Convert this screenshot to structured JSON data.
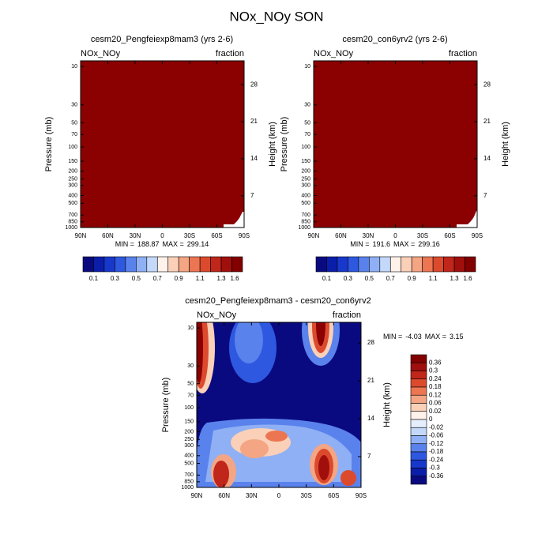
{
  "title": "NOx_NOy SON",
  "chart_data": [
    {
      "type": "contour",
      "title": "cesm20_Pengfeiexp8mam3 (yrs 2-6)",
      "left_label": "NOx_NOy",
      "right_label": "fraction",
      "ylabel": "Pressure (mb)",
      "y2label": "Height (km)",
      "log_y": true,
      "xlim": [
        90,
        -90
      ],
      "xticks": [
        {
          "value": 90,
          "label": "90N"
        },
        {
          "value": 60,
          "label": "60N"
        },
        {
          "value": 30,
          "label": "30N"
        },
        0,
        {
          "value": -30,
          "label": "30S"
        },
        {
          "value": -60,
          "label": "60S"
        },
        {
          "value": -90,
          "label": "90S"
        }
      ],
      "ylim": [
        1000,
        8.5
      ],
      "yticks": [
        1000,
        850,
        700,
        500,
        400,
        300,
        250,
        200,
        150,
        100,
        70,
        50,
        30,
        10
      ],
      "y2lim": [
        1,
        32.5
      ],
      "y2ticks": [
        7,
        14,
        21,
        28
      ],
      "min_label": "MIN =",
      "min": 188.87,
      "max_label": "MAX =",
      "max": 299.14,
      "colorbar": {
        "orientation": "horizontal",
        "labels": [
          0.1,
          0.3,
          0.5,
          0.7,
          0.9,
          1.1,
          1.3,
          1.6
        ],
        "colors": [
          "#0a0a80",
          "#0b1eaa",
          "#1838cc",
          "#2e58e0",
          "#5a82ec",
          "#8fb0f4",
          "#c4d8fa",
          "#fff2ea",
          "#fad0b8",
          "#f4a584",
          "#ec7652",
          "#dc4a2e",
          "#c0261a",
          "#a10f0c",
          "#820000"
        ]
      }
    },
    {
      "type": "contour",
      "title": "cesm20_con6yrv2 (yrs 2-6)",
      "left_label": "NOx_NOy",
      "right_label": "fraction",
      "ylabel": "Pressure (mb)",
      "y2label": "Height (km)",
      "log_y": true,
      "xlim": [
        90,
        -90
      ],
      "xticks": [
        {
          "value": 90,
          "label": "90N"
        },
        {
          "value": 60,
          "label": "60N"
        },
        {
          "value": 30,
          "label": "30N"
        },
        0,
        {
          "value": -30,
          "label": "30S"
        },
        {
          "value": -60,
          "label": "60S"
        },
        {
          "value": -90,
          "label": "90S"
        }
      ],
      "ylim": [
        1000,
        8.5
      ],
      "yticks": [
        1000,
        850,
        700,
        500,
        400,
        300,
        250,
        200,
        150,
        100,
        70,
        50,
        30,
        10
      ],
      "y2lim": [
        1,
        32.5
      ],
      "y2ticks": [
        7,
        14,
        21,
        28
      ],
      "min_label": "MIN =",
      "min": 191.6,
      "max_label": "MAX =",
      "max": 299.16,
      "colorbar": {
        "orientation": "horizontal",
        "labels": [
          0.1,
          0.3,
          0.5,
          0.7,
          0.9,
          1.1,
          1.3,
          1.6
        ],
        "colors": [
          "#0a0a80",
          "#0b1eaa",
          "#1838cc",
          "#2e58e0",
          "#5a82ec",
          "#8fb0f4",
          "#c4d8fa",
          "#fff2ea",
          "#fad0b8",
          "#f4a584",
          "#ec7652",
          "#dc4a2e",
          "#c0261a",
          "#a10f0c",
          "#820000"
        ]
      }
    },
    {
      "type": "contour",
      "title": "cesm20_Pengfeiexp8mam3 - cesm20_con6yrv2",
      "left_label": "NOx_NOy",
      "right_label": "fraction",
      "ylabel": "Pressure (mb)",
      "y2label": "Height (km)",
      "log_y": true,
      "xlim": [
        90,
        -90
      ],
      "xticks": [
        {
          "value": 90,
          "label": "90N"
        },
        {
          "value": 60,
          "label": "60N"
        },
        {
          "value": 30,
          "label": "30N"
        },
        0,
        {
          "value": -30,
          "label": "30S"
        },
        {
          "value": -60,
          "label": "60S"
        },
        {
          "value": -90,
          "label": "90S"
        }
      ],
      "ylim": [
        1000,
        8.5
      ],
      "yticks": [
        1000,
        850,
        700,
        500,
        400,
        300,
        250,
        200,
        150,
        100,
        70,
        50,
        30,
        10
      ],
      "y2lim": [
        1.3,
        31.8
      ],
      "y2ticks": [
        7,
        14,
        21,
        28
      ],
      "min_label": "MIN =",
      "min": -4.03,
      "max_label": "MAX =",
      "max": 3.15,
      "colorbar": {
        "orientation": "vertical",
        "labels": [
          0.36,
          0.3,
          0.24,
          0.18,
          0.12,
          0.06,
          0.02,
          0,
          -0.02,
          -0.06,
          -0.12,
          -0.18,
          -0.24,
          -0.3,
          -0.36
        ],
        "colors": [
          "#820000",
          "#a10f0c",
          "#c0261a",
          "#dc4a2e",
          "#ec7652",
          "#f4a584",
          "#fad0b8",
          "#fff2ea",
          "#e4eefc",
          "#c4d8fa",
          "#8fb0f4",
          "#5a82ec",
          "#2e58e0",
          "#1838cc",
          "#0b1eaa",
          "#0a0a80"
        ]
      }
    }
  ]
}
